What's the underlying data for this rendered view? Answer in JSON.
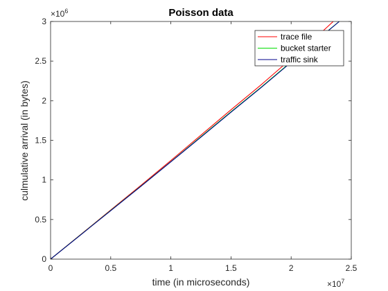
{
  "chart_data": {
    "type": "line",
    "title": "Poisson data",
    "xlabel": "time (in microseconds)",
    "ylabel": "culmulative arrival (in bytes)",
    "x_exponent_base": "×10",
    "x_exponent_power": "7",
    "y_exponent_base": "×10",
    "y_exponent_power": "6",
    "xlim": [
      0,
      25000000
    ],
    "ylim": [
      0,
      3000000
    ],
    "x_ticks": [
      0,
      5000000,
      10000000,
      15000000,
      20000000,
      25000000
    ],
    "x_tick_labels": [
      "0",
      "0.5",
      "1",
      "1.5",
      "2",
      "2.5"
    ],
    "y_ticks": [
      0,
      500000,
      1000000,
      1500000,
      2000000,
      2500000,
      3000000
    ],
    "y_tick_labels": [
      "0",
      "0.5",
      "1",
      "1.5",
      "2",
      "2.5",
      "3"
    ],
    "grid": false,
    "legend_position": "top-right",
    "series": [
      {
        "name": "trace file",
        "color": "#ff0000",
        "x": [
          0,
          2500000,
          5000000,
          7500000,
          10000000,
          12500000,
          15000000,
          17500000,
          20000000,
          22000000,
          23500000
        ],
        "y": [
          0,
          310000,
          620000,
          930000,
          1245000,
          1565000,
          1885000,
          2200000,
          2530000,
          2790000,
          3000000
        ]
      },
      {
        "name": "bucket starter",
        "color": "#00dd00",
        "x": [
          0,
          2500000,
          5000000,
          7500000,
          10000000,
          12500000,
          15000000,
          17500000,
          20000000,
          22000000,
          24000000
        ],
        "y": [
          0,
          308000,
          615000,
          920000,
          1230000,
          1545000,
          1860000,
          2170000,
          2490000,
          2750000,
          3000000
        ]
      },
      {
        "name": "traffic sink",
        "color": "#00008b",
        "x": [
          0,
          2500000,
          5000000,
          7500000,
          10000000,
          12500000,
          15000000,
          17500000,
          20000000,
          22000000,
          24000000
        ],
        "y": [
          0,
          306000,
          612000,
          918000,
          1228000,
          1540000,
          1855000,
          2165000,
          2485000,
          2745000,
          3000000
        ]
      }
    ]
  }
}
